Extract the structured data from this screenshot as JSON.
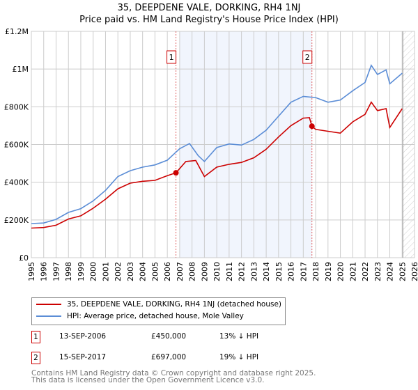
{
  "chart_data": {
    "type": "line",
    "title": "35, DEEPDENE VALE, DORKING, RH4 1NJ",
    "subtitle": "Price paid vs. HM Land Registry's House Price Index (HPI)",
    "xlim": [
      1995,
      2026
    ],
    "ylim": [
      0,
      1200000
    ],
    "x_ticks": [
      "1995",
      "1996",
      "1997",
      "1998",
      "1999",
      "2000",
      "2001",
      "2002",
      "2003",
      "2004",
      "2005",
      "2006",
      "2007",
      "2008",
      "2009",
      "2010",
      "2011",
      "2012",
      "2013",
      "2014",
      "2015",
      "2016",
      "2017",
      "2018",
      "2019",
      "2020",
      "2021",
      "2022",
      "2023",
      "2024",
      "2025",
      "2026"
    ],
    "y_ticks": [
      {
        "v": 0,
        "label": "£0"
      },
      {
        "v": 200000,
        "label": "£200K"
      },
      {
        "v": 400000,
        "label": "£400K"
      },
      {
        "v": 600000,
        "label": "£600K"
      },
      {
        "v": 800000,
        "label": "£800K"
      },
      {
        "v": 1000000,
        "label": "£1M"
      },
      {
        "v": 1200000,
        "label": "£1.2M"
      }
    ],
    "grid": true,
    "shaded_range": [
      2007.0,
      2017.7
    ],
    "hatched_from": 2025.0,
    "series": [
      {
        "name": "35, DEEPDENE VALE, DORKING, RH4 1NJ (detached house)",
        "color": "#cc0000",
        "x": [
          1995,
          1996,
          1997,
          1998,
          1999,
          2000,
          2001,
          2002,
          2003,
          2004,
          2005,
          2006,
          2006.7,
          2007.5,
          2008.3,
          2009,
          2010,
          2011,
          2012,
          2013,
          2014,
          2015,
          2016,
          2017,
          2017.5,
          2017.7,
          2018,
          2019,
          2020,
          2021,
          2022,
          2022.5,
          2023,
          2023.7,
          2024,
          2025
        ],
        "y": [
          157000,
          160000,
          172000,
          205000,
          222000,
          262000,
          310000,
          365000,
          395000,
          405000,
          410000,
          435000,
          450000,
          510000,
          515000,
          430000,
          480000,
          495000,
          505000,
          530000,
          575000,
          640000,
          700000,
          740000,
          742000,
          697000,
          680000,
          670000,
          660000,
          720000,
          760000,
          825000,
          780000,
          790000,
          690000,
          790000
        ]
      },
      {
        "name": "HPI: Average price, detached house, Mole Valley",
        "color": "#5b8dd6",
        "x": [
          1995,
          1996,
          1997,
          1998,
          1999,
          2000,
          2001,
          2002,
          2003,
          2004,
          2005,
          2006,
          2007,
          2007.8,
          2008.5,
          2009,
          2010,
          2011,
          2012,
          2013,
          2014,
          2015,
          2016,
          2017,
          2018,
          2019,
          2020,
          2021,
          2022,
          2022.5,
          2023,
          2023.7,
          2024,
          2025
        ],
        "y": [
          181000,
          184000,
          203000,
          240000,
          260000,
          301000,
          357000,
          430000,
          461000,
          480000,
          492000,
          517000,
          578000,
          605000,
          541000,
          510000,
          584000,
          603000,
          597000,
          627000,
          676000,
          750000,
          824000,
          855000,
          849000,
          824000,
          836000,
          885000,
          929000,
          1020000,
          971000,
          996000,
          922000,
          978000
        ]
      }
    ],
    "sales": [
      {
        "id": "1",
        "x": 2006.7,
        "y": 450000
      },
      {
        "id": "2",
        "x": 2017.7,
        "y": 697000
      }
    ]
  },
  "legend": {
    "items": [
      "35, DEEPDENE VALE, DORKING, RH4 1NJ (detached house)",
      "HPI: Average price, detached house, Mole Valley"
    ]
  },
  "transactions": [
    {
      "id": "1",
      "date": "13-SEP-2006",
      "price": "£450,000",
      "delta": "13% ↓ HPI"
    },
    {
      "id": "2",
      "date": "15-SEP-2017",
      "price": "£697,000",
      "delta": "19% ↓ HPI"
    }
  ],
  "footer": {
    "line1": "Contains HM Land Registry data © Crown copyright and database right 2025.",
    "line2": "This data is licensed under the Open Government Licence v3.0."
  }
}
